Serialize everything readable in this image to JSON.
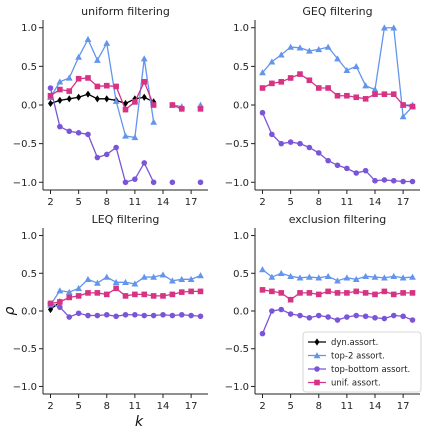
{
  "chart_data": {
    "type": "line",
    "xlabel": "k",
    "ylabel": "ρ",
    "xticks": [
      2,
      5,
      8,
      11,
      14,
      17
    ],
    "yticks": [
      -1.0,
      -0.5,
      0.0,
      0.5,
      1.0
    ],
    "ytick_labels": [
      "−1.0",
      "−0.5",
      "0.0",
      "0.5",
      "1.0"
    ],
    "xlim": [
      1.2,
      18.8
    ],
    "ylim": [
      -1.1,
      1.1
    ],
    "legend": {
      "placement": "lower-right",
      "panel": 3,
      "entries": [
        {
          "series": "dyn",
          "label": "dyn.assort."
        },
        {
          "series": "top2",
          "label": "top-2 assort."
        },
        {
          "series": "topbottom",
          "label": "top-bottom assort."
        },
        {
          "series": "unif",
          "label": "unif. assort."
        }
      ]
    },
    "styles": {
      "dyn": {
        "color": "#000000",
        "marker": "diamond"
      },
      "top2": {
        "color": "#6495ed",
        "marker": "triangle"
      },
      "topbottom": {
        "color": "#7b55d8",
        "marker": "circle"
      },
      "unif": {
        "color": "#d63384",
        "marker": "square"
      }
    },
    "panels": [
      {
        "title": "uniform filtering",
        "series": [
          {
            "key": "dyn",
            "segments": [
              {
                "x": [
                  2,
                  3,
                  4,
                  5,
                  6,
                  7,
                  8,
                  9,
                  10,
                  11,
                  12,
                  13
                ],
                "y": [
                  0.02,
                  0.06,
                  0.08,
                  0.1,
                  0.14,
                  0.08,
                  0.08,
                  0.06,
                  0.02,
                  0.08,
                  0.1,
                  0.04
                ]
              }
            ]
          },
          {
            "key": "top2",
            "segments": [
              {
                "x": [
                  2,
                  3,
                  4,
                  5,
                  6,
                  7,
                  8,
                  9,
                  10,
                  11,
                  12,
                  13
                ],
                "y": [
                  0.1,
                  0.3,
                  0.35,
                  0.62,
                  0.85,
                  0.58,
                  0.8,
                  0.05,
                  -0.4,
                  -0.42,
                  0.6,
                  -0.22
                ]
              },
              {
                "x": [
                  15,
                  16
                ],
                "y": [
                  0.0,
                  -0.02
                ]
              },
              {
                "x": [
                  18
                ],
                "y": [
                  0.0
                ]
              }
            ]
          },
          {
            "key": "topbottom",
            "segments": [
              {
                "x": [
                  2,
                  3,
                  4,
                  5,
                  6,
                  7,
                  8,
                  9,
                  10,
                  11,
                  12,
                  13
                ],
                "y": [
                  0.22,
                  -0.28,
                  -0.34,
                  -0.36,
                  -0.38,
                  -0.68,
                  -0.64,
                  -0.55,
                  -1.0,
                  -0.96,
                  -0.75,
                  -1.0
                ]
              },
              {
                "x": [
                  15
                ],
                "y": [
                  -1.0
                ]
              },
              {
                "x": [
                  18
                ],
                "y": [
                  -1.0
                ]
              }
            ]
          },
          {
            "key": "unif",
            "segments": [
              {
                "x": [
                  2,
                  3,
                  4,
                  5,
                  6,
                  7,
                  8,
                  9,
                  10,
                  11,
                  12,
                  13
                ],
                "y": [
                  0.12,
                  0.2,
                  0.18,
                  0.34,
                  0.35,
                  0.24,
                  0.25,
                  0.24,
                  -0.06,
                  0.04,
                  0.3,
                  0.0
                ]
              },
              {
                "x": [
                  15,
                  16
                ],
                "y": [
                  0.0,
                  -0.05
                ]
              },
              {
                "x": [
                  18
                ],
                "y": [
                  -0.05
                ]
              }
            ]
          }
        ]
      },
      {
        "title": "GEQ filtering",
        "series": [
          {
            "key": "top2",
            "segments": [
              {
                "x": [
                  2,
                  3,
                  4,
                  5,
                  6,
                  7,
                  8,
                  9,
                  10,
                  11,
                  12,
                  13,
                  14,
                  15,
                  16,
                  17,
                  18
                ],
                "y": [
                  0.42,
                  0.56,
                  0.65,
                  0.75,
                  0.74,
                  0.7,
                  0.72,
                  0.75,
                  0.6,
                  0.45,
                  0.5,
                  0.25,
                  0.2,
                  1.0,
                  1.0,
                  -0.15,
                  -0.02
                ]
              },
              {
                "x": [
                  17,
                  18
                ],
                "y": [
                  0.0,
                  0.0
                ]
              }
            ]
          },
          {
            "key": "topbottom",
            "segments": [
              {
                "x": [
                  2,
                  3,
                  4,
                  5,
                  6,
                  7,
                  8,
                  9,
                  10,
                  11,
                  12,
                  13,
                  14,
                  15,
                  16,
                  17,
                  18
                ],
                "y": [
                  -0.1,
                  -0.38,
                  -0.5,
                  -0.48,
                  -0.5,
                  -0.55,
                  -0.62,
                  -0.72,
                  -0.78,
                  -0.82,
                  -0.88,
                  -0.85,
                  -0.98,
                  -0.97,
                  -0.98,
                  -0.99,
                  -0.99
                ]
              }
            ]
          },
          {
            "key": "unif",
            "segments": [
              {
                "x": [
                  2,
                  3,
                  4,
                  5,
                  6,
                  7,
                  8,
                  9,
                  10,
                  11,
                  12,
                  13,
                  14,
                  15,
                  16,
                  17,
                  18
                ],
                "y": [
                  0.22,
                  0.28,
                  0.3,
                  0.35,
                  0.4,
                  0.32,
                  0.22,
                  0.22,
                  0.12,
                  0.12,
                  0.1,
                  0.08,
                  0.14,
                  0.14,
                  0.14,
                  0.0,
                  -0.02
                ]
              }
            ]
          }
        ]
      },
      {
        "title": "LEQ filtering",
        "series": [
          {
            "key": "dyn",
            "segments": [
              {
                "x": [
                  2,
                  3
                ],
                "y": [
                  0.02,
                  0.12
                ]
              }
            ]
          },
          {
            "key": "top2",
            "segments": [
              {
                "x": [
                  2,
                  3,
                  4,
                  5,
                  6,
                  7,
                  8,
                  9,
                  10,
                  11,
                  12,
                  13,
                  14,
                  15,
                  16,
                  17,
                  18
                ],
                "y": [
                  0.08,
                  0.27,
                  0.25,
                  0.3,
                  0.42,
                  0.37,
                  0.45,
                  0.38,
                  0.38,
                  0.36,
                  0.45,
                  0.45,
                  0.48,
                  0.4,
                  0.42,
                  0.42,
                  0.47
                ]
              }
            ]
          },
          {
            "key": "topbottom",
            "segments": [
              {
                "x": [
                  2,
                  3,
                  4,
                  5,
                  6,
                  7,
                  8,
                  9,
                  10,
                  11,
                  12,
                  13,
                  14,
                  15,
                  16,
                  17,
                  18
                ],
                "y": [
                  0.1,
                  0.05,
                  -0.08,
                  -0.03,
                  -0.06,
                  -0.06,
                  -0.05,
                  -0.07,
                  -0.05,
                  -0.05,
                  -0.06,
                  -0.06,
                  -0.05,
                  -0.06,
                  -0.05,
                  -0.06,
                  -0.07
                ]
              }
            ]
          },
          {
            "key": "unif",
            "segments": [
              {
                "x": [
                  2,
                  3,
                  4,
                  5,
                  6,
                  7,
                  8,
                  9,
                  10,
                  11,
                  12,
                  13,
                  14,
                  15,
                  16,
                  17,
                  18
                ],
                "y": [
                  0.1,
                  0.12,
                  0.18,
                  0.2,
                  0.24,
                  0.24,
                  0.22,
                  0.3,
                  0.2,
                  0.22,
                  0.22,
                  0.2,
                  0.2,
                  0.22,
                  0.25,
                  0.26,
                  0.26
                ]
              }
            ]
          }
        ]
      },
      {
        "title": "exclusion filtering",
        "series": [
          {
            "key": "top2",
            "segments": [
              {
                "x": [
                  2,
                  3,
                  4,
                  5,
                  6,
                  7,
                  8,
                  9,
                  10,
                  11,
                  12,
                  13,
                  14,
                  15,
                  16,
                  17,
                  18
                ],
                "y": [
                  0.55,
                  0.45,
                  0.5,
                  0.46,
                  0.44,
                  0.45,
                  0.44,
                  0.46,
                  0.4,
                  0.44,
                  0.42,
                  0.46,
                  0.45,
                  0.44,
                  0.46,
                  0.44,
                  0.45
                ]
              }
            ]
          },
          {
            "key": "topbottom",
            "segments": [
              {
                "x": [
                  2,
                  3,
                  4,
                  5,
                  6,
                  7,
                  8,
                  9,
                  10,
                  11,
                  12,
                  13,
                  14,
                  15,
                  16,
                  17,
                  18
                ],
                "y": [
                  -0.3,
                  0.0,
                  0.02,
                  -0.04,
                  -0.06,
                  -0.09,
                  -0.06,
                  -0.08,
                  -0.12,
                  -0.08,
                  -0.06,
                  -0.07,
                  -0.09,
                  -0.1,
                  -0.06,
                  -0.07,
                  -0.12
                ]
              }
            ]
          },
          {
            "key": "unif",
            "segments": [
              {
                "x": [
                  2,
                  3,
                  4,
                  5,
                  6,
                  7,
                  8,
                  9,
                  10,
                  11,
                  12,
                  13,
                  14,
                  15,
                  16,
                  17,
                  18
                ],
                "y": [
                  0.28,
                  0.26,
                  0.24,
                  0.15,
                  0.24,
                  0.24,
                  0.22,
                  0.26,
                  0.24,
                  0.24,
                  0.26,
                  0.24,
                  0.22,
                  0.26,
                  0.22,
                  0.24,
                  0.24
                ]
              }
            ]
          }
        ]
      }
    ]
  }
}
